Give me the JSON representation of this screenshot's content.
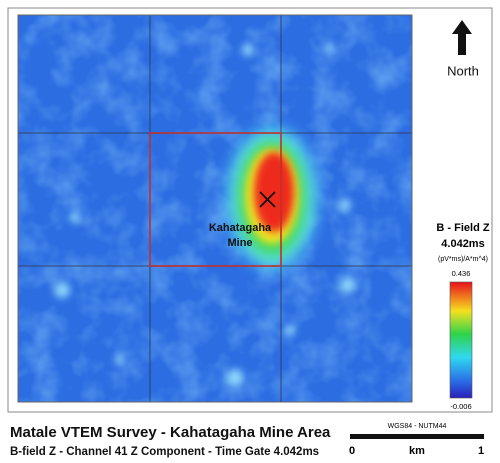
{
  "title": "Matale VTEM Survey - Kahatagaha Mine Area",
  "subtitle": "B-field Z - Channel 41 Z Component - Time Gate 4.042ms",
  "north_label": "North",
  "mine_label": [
    "Kahatagaha",
    "Mine"
  ],
  "legend": {
    "title": "B - Field Z",
    "time": "4.042ms",
    "units": "(pV*ms)/A*m^4)",
    "max_label": "0.436",
    "min_label": "-0.006"
  },
  "scale": {
    "projection": "WGS84 - NUTM44",
    "labels": [
      "0",
      "km",
      "1"
    ]
  }
}
